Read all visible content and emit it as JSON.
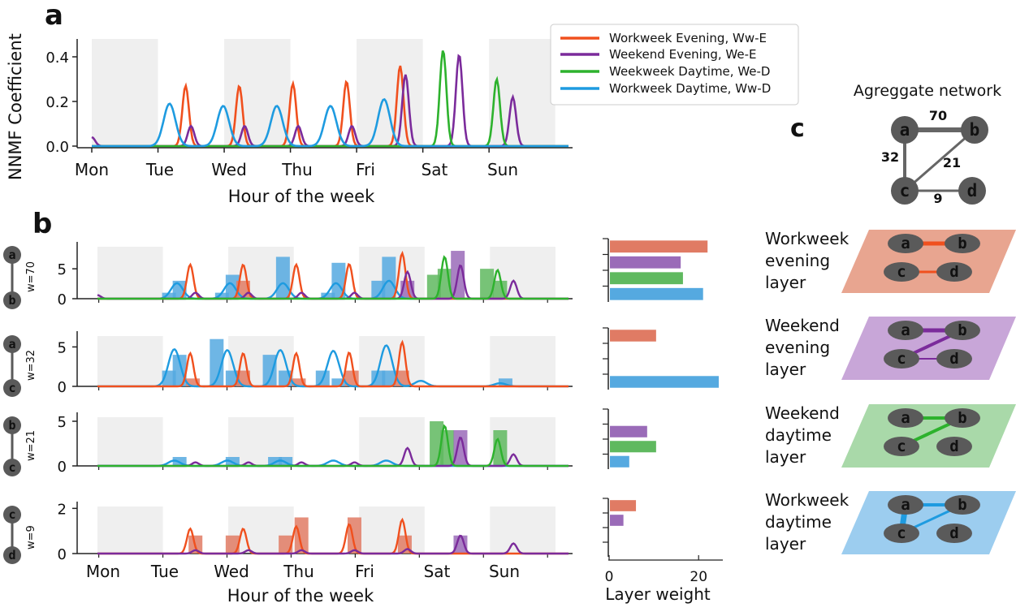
{
  "colors": {
    "ww_e": "#f0501e",
    "we_e": "#7b2b9b",
    "we_d": "#2db22d",
    "ww_d": "#1e9be0",
    "ww_e_bar": "#e07b64",
    "we_e_bar": "#9a6bb8",
    "we_d_bar": "#5fb95f",
    "ww_d_bar": "#55a9e0",
    "weekend_shade": "#efefef",
    "node": "#5a5a5a",
    "agg_edge": "#666666",
    "layer_ww_e": "#e8a590",
    "layer_we_e": "#c8a6d8",
    "layer_we_d": "#a9d9a9",
    "layer_ww_d": "#9ccdef"
  },
  "panels": {
    "a": "a",
    "b": "b",
    "c": "c"
  },
  "chart_data": [
    {
      "id": "panel-a",
      "type": "line",
      "ylabel": "NNMF Coefficient",
      "xlabel": "Hour of the week",
      "ylim": [
        0,
        0.48
      ],
      "yticks": [
        {
          "v": 0.0,
          "label": "0.0"
        },
        {
          "v": 0.2,
          "label": "0.2"
        },
        {
          "v": 0.4,
          "label": "0.4"
        }
      ],
      "day_labels": [
        "Mon",
        "Tue",
        "Wed",
        "Thu",
        "Fri",
        "Sat",
        "Sun"
      ],
      "legend": [
        {
          "key": "ww_e",
          "label": "Workweek Evening, Ww-E"
        },
        {
          "key": "we_e",
          "label": "Weekend Evening, We-E"
        },
        {
          "key": "we_d",
          "label": "Weekweek Daytime, We-D"
        },
        {
          "key": "ww_d",
          "label": "Workweek Daytime, Ww-D"
        }
      ],
      "series": [
        {
          "key": "ww_e",
          "name": "Workweek Evening",
          "peaks": [
            [
              1.75,
              0.27
            ],
            [
              2.75,
              0.27
            ],
            [
              3.75,
              0.28
            ],
            [
              4.75,
              0.29
            ],
            [
              5.75,
              0.36
            ]
          ]
        },
        {
          "key": "we_e",
          "name": "Weekend Evening",
          "peaks": [
            [
              0.0,
              0.04
            ],
            [
              1.85,
              0.09
            ],
            [
              2.85,
              0.09
            ],
            [
              3.85,
              0.09
            ],
            [
              4.85,
              0.09
            ],
            [
              5.85,
              0.32
            ],
            [
              6.85,
              0.41
            ],
            [
              7.85,
              0.22
            ]
          ]
        },
        {
          "key": "we_d",
          "name": "Weekweek Daytime",
          "peaks": [
            [
              6.55,
              0.43
            ],
            [
              7.55,
              0.3
            ]
          ]
        },
        {
          "key": "ww_d",
          "name": "Workweek Daytime",
          "peaks": [
            [
              1.45,
              0.19
            ],
            [
              2.45,
              0.18
            ],
            [
              3.45,
              0.18
            ],
            [
              4.45,
              0.18
            ],
            [
              5.45,
              0.21
            ]
          ]
        }
      ]
    },
    {
      "id": "row-a-b",
      "type": "bar+line",
      "edge": "w=70",
      "nodes": [
        "a",
        "b"
      ],
      "ylim": [
        0,
        9.5
      ],
      "yticks": [
        {
          "v": 0,
          "label": "0"
        },
        {
          "v": 5,
          "label": "5"
        }
      ],
      "bars": [
        {
          "x": 1.35,
          "v": 1,
          "key": "ww_d"
        },
        {
          "x": 1.55,
          "v": 3,
          "key": "ww_d"
        },
        {
          "x": 2.35,
          "v": 1,
          "key": "ww_d"
        },
        {
          "x": 2.55,
          "v": 4,
          "key": "ww_d"
        },
        {
          "x": 2.75,
          "v": 3,
          "key": "ww_e"
        },
        {
          "x": 3.5,
          "v": 7,
          "key": "ww_d"
        },
        {
          "x": 4.35,
          "v": 1,
          "key": "ww_d"
        },
        {
          "x": 4.55,
          "v": 6,
          "key": "ww_d"
        },
        {
          "x": 5.3,
          "v": 3,
          "key": "ww_d"
        },
        {
          "x": 5.5,
          "v": 7,
          "key": "ww_d"
        },
        {
          "x": 5.85,
          "v": 3,
          "key": "we_e"
        },
        {
          "x": 6.35,
          "v": 4,
          "key": "we_d"
        },
        {
          "x": 6.55,
          "v": 5,
          "key": "we_d"
        },
        {
          "x": 6.8,
          "v": 8,
          "key": "we_e"
        },
        {
          "x": 7.35,
          "v": 5,
          "key": "we_d"
        },
        {
          "x": 7.6,
          "v": 3,
          "key": "we_d"
        }
      ],
      "peaks": [
        {
          "key": "ww_d",
          "p": [
            [
              1.5,
              2.6
            ],
            [
              2.5,
              2.6
            ],
            [
              3.5,
              2.6
            ],
            [
              4.5,
              2.6
            ],
            [
              5.5,
              3.0
            ]
          ]
        },
        {
          "key": "ww_e",
          "p": [
            [
              1.75,
              5.7
            ],
            [
              2.75,
              5.7
            ],
            [
              3.75,
              5.7
            ],
            [
              4.75,
              5.8
            ],
            [
              5.75,
              7.6
            ]
          ]
        },
        {
          "key": "we_e",
          "p": [
            [
              0.0,
              0.6
            ],
            [
              1.85,
              1.0
            ],
            [
              2.85,
              1.0
            ],
            [
              3.85,
              1.0
            ],
            [
              4.85,
              1.0
            ],
            [
              5.85,
              4.5
            ],
            [
              6.85,
              5.6
            ],
            [
              7.85,
              3.0
            ]
          ]
        },
        {
          "key": "we_d",
          "p": [
            [
              6.55,
              7.0
            ],
            [
              7.55,
              4.8
            ]
          ]
        }
      ],
      "layer_weights": [
        {
          "key": "ww_e",
          "v": 22.0
        },
        {
          "key": "we_e",
          "v": 16.0
        },
        {
          "key": "we_d",
          "v": 16.5
        },
        {
          "key": "ww_d",
          "v": 21.0
        }
      ]
    },
    {
      "id": "row-a-c",
      "type": "bar+line",
      "edge": "w=32",
      "nodes": [
        "a",
        "c"
      ],
      "ylim": [
        0,
        7
      ],
      "yticks": [
        {
          "v": 0,
          "label": "0"
        },
        {
          "v": 5,
          "label": "5"
        }
      ],
      "bars": [
        {
          "x": 1.35,
          "v": 2,
          "key": "ww_d"
        },
        {
          "x": 1.55,
          "v": 4,
          "key": "ww_d"
        },
        {
          "x": 1.8,
          "v": 1,
          "key": "ww_e"
        },
        {
          "x": 2.25,
          "v": 6,
          "key": "ww_d"
        },
        {
          "x": 2.55,
          "v": 2,
          "key": "ww_d"
        },
        {
          "x": 2.75,
          "v": 2,
          "key": "ww_e"
        },
        {
          "x": 3.25,
          "v": 4,
          "key": "ww_d"
        },
        {
          "x": 3.55,
          "v": 2,
          "key": "ww_d"
        },
        {
          "x": 3.8,
          "v": 1,
          "key": "ww_e"
        },
        {
          "x": 4.25,
          "v": 2,
          "key": "ww_d"
        },
        {
          "x": 4.55,
          "v": 1,
          "key": "ww_d"
        },
        {
          "x": 4.8,
          "v": 2,
          "key": "ww_e"
        },
        {
          "x": 5.3,
          "v": 2,
          "key": "ww_d"
        },
        {
          "x": 5.5,
          "v": 2,
          "key": "ww_d"
        },
        {
          "x": 5.75,
          "v": 2,
          "key": "ww_e"
        },
        {
          "x": 7.7,
          "v": 1,
          "key": "ww_d"
        }
      ],
      "peaks": [
        {
          "key": "ww_d",
          "p": [
            [
              1.45,
              4.7
            ],
            [
              2.45,
              4.6
            ],
            [
              3.45,
              4.6
            ],
            [
              4.45,
              4.5
            ],
            [
              5.45,
              5.2
            ],
            [
              6.1,
              0.7
            ],
            [
              7.6,
              0.4
            ]
          ]
        },
        {
          "key": "ww_e",
          "p": [
            [
              1.75,
              4.2
            ],
            [
              2.75,
              4.2
            ],
            [
              3.75,
              4.2
            ],
            [
              4.75,
              4.3
            ],
            [
              5.75,
              5.6
            ]
          ]
        }
      ],
      "layer_weights": [
        {
          "key": "ww_e",
          "v": 10.5
        },
        {
          "key": "we_e",
          "v": 0
        },
        {
          "key": "we_d",
          "v": 0
        },
        {
          "key": "ww_d",
          "v": 24.5
        }
      ]
    },
    {
      "id": "row-b-c",
      "type": "bar+line",
      "edge": "w=21",
      "nodes": [
        "b",
        "c"
      ],
      "ylim": [
        0,
        6
      ],
      "yticks": [
        {
          "v": 0,
          "label": "0"
        },
        {
          "v": 5,
          "label": "5"
        }
      ],
      "bars": [
        {
          "x": 1.55,
          "v": 1,
          "key": "ww_d"
        },
        {
          "x": 2.55,
          "v": 1,
          "key": "ww_d"
        },
        {
          "x": 3.35,
          "v": 1,
          "key": "ww_d"
        },
        {
          "x": 3.55,
          "v": 1,
          "key": "ww_d"
        },
        {
          "x": 6.4,
          "v": 5,
          "key": "we_d"
        },
        {
          "x": 6.6,
          "v": 4,
          "key": "we_d"
        },
        {
          "x": 6.85,
          "v": 4,
          "key": "we_e"
        },
        {
          "x": 7.6,
          "v": 4,
          "key": "we_d"
        }
      ],
      "peaks": [
        {
          "key": "ww_d",
          "p": [
            [
              1.45,
              0.6
            ],
            [
              2.45,
              0.6
            ],
            [
              3.45,
              0.6
            ],
            [
              4.45,
              0.6
            ],
            [
              5.45,
              0.6
            ]
          ]
        },
        {
          "key": "we_e",
          "p": [
            [
              1.85,
              0.4
            ],
            [
              2.85,
              0.4
            ],
            [
              3.85,
              0.4
            ],
            [
              4.85,
              0.4
            ],
            [
              5.85,
              2.0
            ],
            [
              6.85,
              3.2
            ],
            [
              7.85,
              1.3
            ]
          ]
        },
        {
          "key": "we_d",
          "p": [
            [
              6.55,
              4.5
            ],
            [
              7.55,
              3.0
            ]
          ]
        }
      ],
      "layer_weights": [
        {
          "key": "ww_e",
          "v": 0
        },
        {
          "key": "we_e",
          "v": 8.5
        },
        {
          "key": "we_d",
          "v": 10.5
        },
        {
          "key": "ww_d",
          "v": 4.5
        }
      ]
    },
    {
      "id": "row-c-d",
      "type": "bar+line",
      "edge": "w=9",
      "nodes": [
        "c",
        "d"
      ],
      "ylim": [
        0,
        2.3
      ],
      "yticks": [
        {
          "v": 0,
          "label": "0"
        },
        {
          "v": 2,
          "label": "2"
        }
      ],
      "xlabel": "Hour of the week",
      "day_labels": [
        "Mon",
        "Tue",
        "Wed",
        "Thu",
        "Fri",
        "Sat",
        "Sun"
      ],
      "bars": [
        {
          "x": 1.85,
          "v": 0.8,
          "key": "ww_e"
        },
        {
          "x": 2.55,
          "v": 0.8,
          "key": "ww_e"
        },
        {
          "x": 3.55,
          "v": 0.8,
          "key": "ww_e"
        },
        {
          "x": 3.85,
          "v": 1.6,
          "key": "ww_e"
        },
        {
          "x": 4.85,
          "v": 1.6,
          "key": "ww_e"
        },
        {
          "x": 5.8,
          "v": 0.8,
          "key": "ww_e"
        },
        {
          "x": 6.85,
          "v": 0.8,
          "key": "we_e"
        }
      ],
      "peaks": [
        {
          "key": "ww_e",
          "p": [
            [
              1.75,
              1.1
            ],
            [
              2.75,
              1.1
            ],
            [
              3.75,
              1.2
            ],
            [
              4.75,
              1.3
            ],
            [
              5.75,
              1.5
            ]
          ]
        },
        {
          "key": "we_e",
          "p": [
            [
              1.85,
              0.15
            ],
            [
              2.85,
              0.15
            ],
            [
              3.85,
              0.15
            ],
            [
              4.85,
              0.15
            ],
            [
              5.85,
              0.2
            ],
            [
              6.85,
              0.8
            ],
            [
              7.85,
              0.45
            ]
          ]
        }
      ],
      "layer_weights": [
        {
          "key": "ww_e",
          "v": 6.0
        },
        {
          "key": "we_e",
          "v": 3.2
        },
        {
          "key": "we_d",
          "v": 0
        },
        {
          "key": "ww_d",
          "v": 0
        }
      ]
    },
    {
      "id": "layer-weight-axis",
      "type": "bar",
      "xlabel": "Layer weight",
      "xlim": [
        0,
        26
      ],
      "xticks": [
        {
          "v": 0,
          "label": "0"
        },
        {
          "v": 20,
          "label": "20"
        }
      ]
    }
  ],
  "network": {
    "title": "Agreggate network",
    "nodes": [
      "a",
      "b",
      "c",
      "d"
    ],
    "edges": [
      {
        "from": "a",
        "to": "b",
        "w": "70"
      },
      {
        "from": "a",
        "to": "c",
        "w": "32"
      },
      {
        "from": "c",
        "to": "b",
        "w": "21"
      },
      {
        "from": "c",
        "to": "d",
        "w": "9"
      }
    ],
    "layers": [
      {
        "key": "ww_e",
        "title": [
          "Workweek",
          "evening",
          "layer"
        ]
      },
      {
        "key": "we_e",
        "title": [
          "Weekend",
          "evening",
          "layer"
        ]
      },
      {
        "key": "we_d",
        "title": [
          "Weekend",
          "daytime",
          "layer"
        ]
      },
      {
        "key": "ww_d",
        "title": [
          "Workweek",
          "daytime",
          "layer"
        ]
      }
    ]
  }
}
